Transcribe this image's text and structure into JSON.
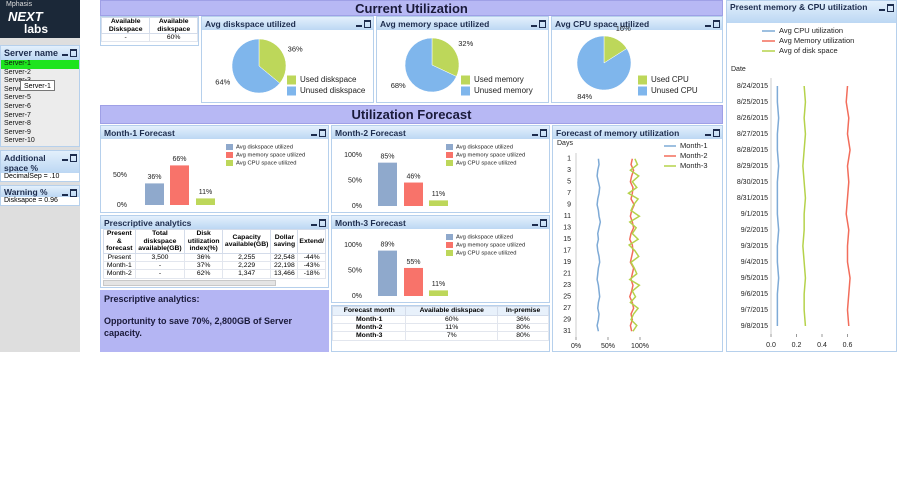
{
  "logo": {
    "company": "Mphasis",
    "brand_line1": "NEXT",
    "brand_line2": "labs"
  },
  "sidebar": {
    "server_list": {
      "title": "Server name",
      "items": [
        "Server-1",
        "Server-2",
        "Server-3",
        "Server-4",
        "Server-5",
        "Server-6",
        "Server-7",
        "Server-8",
        "Server-9",
        "Server-10"
      ],
      "selected_index": 0,
      "tooltip": "Server-1"
    },
    "additional_space": {
      "title": "Additional space %",
      "rows": [
        "DecimalSep = .10"
      ]
    },
    "warning": {
      "title": "Warning %",
      "rows": [
        "Disksapce = 0.96"
      ]
    }
  },
  "available_table": {
    "headers": [
      "Available Diskspace",
      "Available diskspace"
    ],
    "rows": [
      [
        "-",
        "60%"
      ]
    ]
  },
  "banners": [
    "Current Utilization",
    "Utilization Forecast"
  ],
  "chart_data": [
    {
      "type": "pie",
      "title": "Avg diskspace utilized",
      "categories": [
        "Used diskspace",
        "Unused diskspace"
      ],
      "values": [
        36,
        64
      ],
      "value_labels": [
        "36%",
        "64%"
      ],
      "colors": [
        "#bdd75a",
        "#7fb6ec"
      ]
    },
    {
      "type": "pie",
      "title": "Avg memory space utilized",
      "categories": [
        "Used memory",
        "Unused memory"
      ],
      "values": [
        32,
        68
      ],
      "value_labels": [
        "32%",
        "68%"
      ],
      "colors": [
        "#bdd75a",
        "#7fb6ec"
      ]
    },
    {
      "type": "pie",
      "title": "Avg CPU space utilized",
      "categories": [
        "Used CPU",
        "Unused CPU"
      ],
      "values": [
        16,
        84
      ],
      "value_labels": [
        "16%",
        "84%"
      ],
      "colors": [
        "#bdd75a",
        "#7fb6ec"
      ]
    },
    {
      "type": "bar",
      "title": "Month-1 Forecast",
      "categories": [
        "Avg diskspace utilized",
        "Avg memory space utilized",
        "Avg CPU space utilized"
      ],
      "values": [
        36,
        66,
        11
      ],
      "value_labels": [
        "36%",
        "66%",
        "11%"
      ],
      "colors": [
        "#8fa9cc",
        "#f8736a",
        "#bdd75a"
      ],
      "ylim": [
        0,
        100
      ],
      "yticks": [
        {
          "value": 0,
          "label": "0%"
        },
        {
          "value": 50,
          "label": "50%"
        }
      ]
    },
    {
      "type": "bar",
      "title": "Month-2 Forecast",
      "categories": [
        "Avg diskspace utilized",
        "Avg memory space utilized",
        "Avg CPU space utilized"
      ],
      "values": [
        85,
        46,
        11
      ],
      "value_labels": [
        "85%",
        "46%",
        "11%"
      ],
      "colors": [
        "#8fa9cc",
        "#f8736a",
        "#bdd75a"
      ],
      "ylim": [
        0,
        100
      ],
      "yticks": [
        {
          "value": 0,
          "label": "0%"
        },
        {
          "value": 50,
          "label": "50%"
        },
        {
          "value": 100,
          "label": "100%"
        }
      ]
    },
    {
      "type": "bar",
      "title": "Month-3 Forecast",
      "categories": [
        "Avg diskspace utilized",
        "Avg memory space utilized",
        "Avg CPU space utilized"
      ],
      "values": [
        89,
        55,
        11
      ],
      "value_labels": [
        "89%",
        "55%",
        "11%"
      ],
      "colors": [
        "#8fa9cc",
        "#f8736a",
        "#bdd75a"
      ],
      "ylim": [
        0,
        100
      ],
      "yticks": [
        {
          "value": 0,
          "label": "0%"
        },
        {
          "value": 50,
          "label": "50%"
        },
        {
          "value": 100,
          "label": "100%"
        }
      ]
    },
    {
      "type": "line",
      "orientation": "horizontal",
      "title": "Forecast of memory utilization",
      "ylabel": "Days",
      "y": [
        1,
        2,
        3,
        4,
        5,
        6,
        7,
        8,
        9,
        10,
        11,
        12,
        13,
        14,
        15,
        16,
        17,
        18,
        19,
        20,
        21,
        22,
        23,
        24,
        25,
        26,
        27,
        28,
        29,
        30,
        31
      ],
      "ylim": [
        0,
        32
      ],
      "yticks": [
        1,
        3,
        5,
        7,
        9,
        11,
        13,
        15,
        17,
        19,
        21,
        23,
        25,
        27,
        29,
        31
      ],
      "xlim": [
        0,
        100
      ],
      "xticks": [
        {
          "value": 0,
          "label": "0%"
        },
        {
          "value": 50,
          "label": "50%"
        },
        {
          "value": 100,
          "label": "100%"
        }
      ],
      "series": [
        {
          "name": "Month-1",
          "color": "#7eaad6",
          "values": [
            35,
            36,
            34,
            33,
            35,
            37,
            36,
            34,
            33,
            35,
            36,
            38,
            36,
            34,
            35,
            33,
            34,
            36,
            37,
            35,
            34,
            33,
            35,
            36,
            37,
            35,
            34,
            36,
            35,
            33,
            35
          ]
        },
        {
          "name": "Month-2",
          "color": "#f26d5b",
          "values": [
            88,
            86,
            90,
            87,
            85,
            89,
            88,
            86,
            91,
            87,
            85,
            88,
            90,
            86,
            84,
            88,
            89,
            87,
            85,
            90,
            88,
            86,
            89,
            87,
            84,
            88,
            90,
            86,
            88,
            85,
            87
          ]
        },
        {
          "name": "Month-3",
          "color": "#b5d24a",
          "values": [
            92,
            96,
            85,
            98,
            88,
            95,
            82,
            97,
            90,
            86,
            99,
            84,
            94,
            88,
            97,
            83,
            92,
            98,
            86,
            91,
            95,
            84,
            99,
            88,
            93,
            85,
            97,
            90,
            86,
            95,
            89
          ]
        }
      ]
    },
    {
      "type": "line",
      "orientation": "horizontal",
      "title": "Present memory & CPU utilization",
      "ylabel": "Date",
      "categories": [
        "8/24/2015",
        "8/25/2015",
        "8/26/2015",
        "8/27/2015",
        "8/28/2015",
        "8/29/2015",
        "8/30/2015",
        "8/31/2015",
        "9/1/2015",
        "9/2/2015",
        "9/3/2015",
        "9/4/2015",
        "9/5/2015",
        "9/6/2015",
        "9/7/2015",
        "9/8/2015"
      ],
      "xlim": [
        0,
        0.8
      ],
      "xticks": [
        {
          "value": 0,
          "label": "0.0"
        },
        0.2,
        0.4,
        0.6
      ],
      "series": [
        {
          "name": "Avg CPU utilization",
          "color": "#7eaad6",
          "values": [
            0.05,
            0.05,
            0.06,
            0.05,
            0.05,
            0.06,
            0.05,
            0.05,
            0.05,
            0.06,
            0.05,
            0.05,
            0.06,
            0.05,
            0.05,
            0.05
          ]
        },
        {
          "name": "Avg Memory utilization",
          "color": "#f26d5b",
          "values": [
            0.6,
            0.59,
            0.61,
            0.6,
            0.62,
            0.6,
            0.61,
            0.6,
            0.59,
            0.61,
            0.6,
            0.6,
            0.62,
            0.61,
            0.6,
            0.61
          ]
        },
        {
          "name": "Avg of disk space",
          "color": "#b5d24a",
          "values": [
            0.26,
            0.27,
            0.26,
            0.27,
            0.26,
            0.25,
            0.26,
            0.27,
            0.26,
            0.26,
            0.25,
            0.26,
            0.27,
            0.26,
            0.26,
            0.27
          ]
        }
      ]
    }
  ],
  "prescriptive_table": {
    "title": "Prescriptive analytics",
    "headers": [
      "Present & forecast",
      "Total diskspace available(GB)",
      "Disk utilization index(%)",
      "Capacity available(GB)",
      "Dollar saving",
      "Extend/"
    ],
    "rows": [
      [
        "Present",
        "3,500",
        "36%",
        "2,255",
        "22,548",
        "-44%"
      ],
      [
        "Month-1",
        "-",
        "37%",
        "2,229",
        "22,198",
        "-43%"
      ],
      [
        "Month-2",
        "-",
        "62%",
        "1,347",
        "13,466",
        "-18%"
      ]
    ]
  },
  "prescriptive_note": {
    "heading": "Prescriptive analytics:",
    "text": "Opportunity to save 70%, 2,800GB of Server capacity."
  },
  "forecast_table": {
    "headers": [
      "Forecast month",
      "Available diskspace",
      "In-premise"
    ],
    "rows": [
      [
        "Month-1",
        "60%",
        "36%"
      ],
      [
        "Month-2",
        "11%",
        "80%"
      ],
      [
        "Month-3",
        "7%",
        "80%"
      ]
    ]
  }
}
